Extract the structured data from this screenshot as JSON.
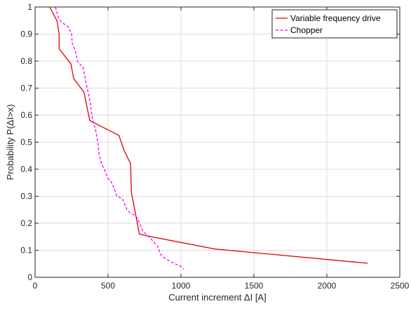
{
  "chart_data": {
    "type": "line",
    "title": "",
    "xlabel": "Current increment ΔI [A]",
    "ylabel": "Probability P(ΔI>x)",
    "xlim": [
      0,
      2500
    ],
    "ylim": [
      0,
      1
    ],
    "xticks": [
      0,
      500,
      1000,
      1500,
      2000,
      2500
    ],
    "yticks": [
      0,
      0.1,
      0.2,
      0.3,
      0.4,
      0.5,
      0.6,
      0.7,
      0.8,
      0.9,
      1
    ],
    "xtick_labels": [
      "0",
      "500",
      "1000",
      "1500",
      "2000",
      "2500"
    ],
    "ytick_labels": [
      "0",
      "0.1",
      "0.2",
      "0.3",
      "0.4",
      "0.5",
      "0.6",
      "0.7",
      "0.8",
      "0.9",
      "1"
    ],
    "grid": true,
    "legend_position": "top-right",
    "series": [
      {
        "name": "Variable frequency drive",
        "color": "#e00000",
        "style": "solid",
        "points": [
          [
            100,
            1.0
          ],
          [
            150,
            0.95
          ],
          [
            165,
            0.9
          ],
          [
            165,
            0.845
          ],
          [
            245,
            0.79
          ],
          [
            265,
            0.735
          ],
          [
            335,
            0.685
          ],
          [
            375,
            0.58
          ],
          [
            575,
            0.525
          ],
          [
            610,
            0.47
          ],
          [
            655,
            0.42
          ],
          [
            660,
            0.315
          ],
          [
            715,
            0.16
          ],
          [
            750,
            0.155
          ],
          [
            1230,
            0.105
          ],
          [
            2280,
            0.052
          ]
        ]
      },
      {
        "name": "Chopper",
        "color": "#ff00ff",
        "style": "dashed",
        "points": [
          [
            140,
            1.0
          ],
          [
            160,
            0.96
          ],
          [
            180,
            0.945
          ],
          [
            230,
            0.925
          ],
          [
            250,
            0.9
          ],
          [
            255,
            0.865
          ],
          [
            275,
            0.84
          ],
          [
            290,
            0.8
          ],
          [
            330,
            0.775
          ],
          [
            345,
            0.73
          ],
          [
            370,
            0.67
          ],
          [
            380,
            0.64
          ],
          [
            395,
            0.58
          ],
          [
            415,
            0.545
          ],
          [
            430,
            0.5
          ],
          [
            440,
            0.455
          ],
          [
            455,
            0.42
          ],
          [
            475,
            0.4
          ],
          [
            500,
            0.365
          ],
          [
            520,
            0.355
          ],
          [
            545,
            0.325
          ],
          [
            560,
            0.3
          ],
          [
            600,
            0.29
          ],
          [
            630,
            0.25
          ],
          [
            660,
            0.235
          ],
          [
            680,
            0.23
          ],
          [
            700,
            0.22
          ],
          [
            725,
            0.19
          ],
          [
            740,
            0.17
          ],
          [
            790,
            0.145
          ],
          [
            840,
            0.115
          ],
          [
            860,
            0.085
          ],
          [
            890,
            0.07
          ],
          [
            940,
            0.055
          ],
          [
            1000,
            0.04
          ],
          [
            1020,
            0.03
          ]
        ]
      }
    ]
  }
}
